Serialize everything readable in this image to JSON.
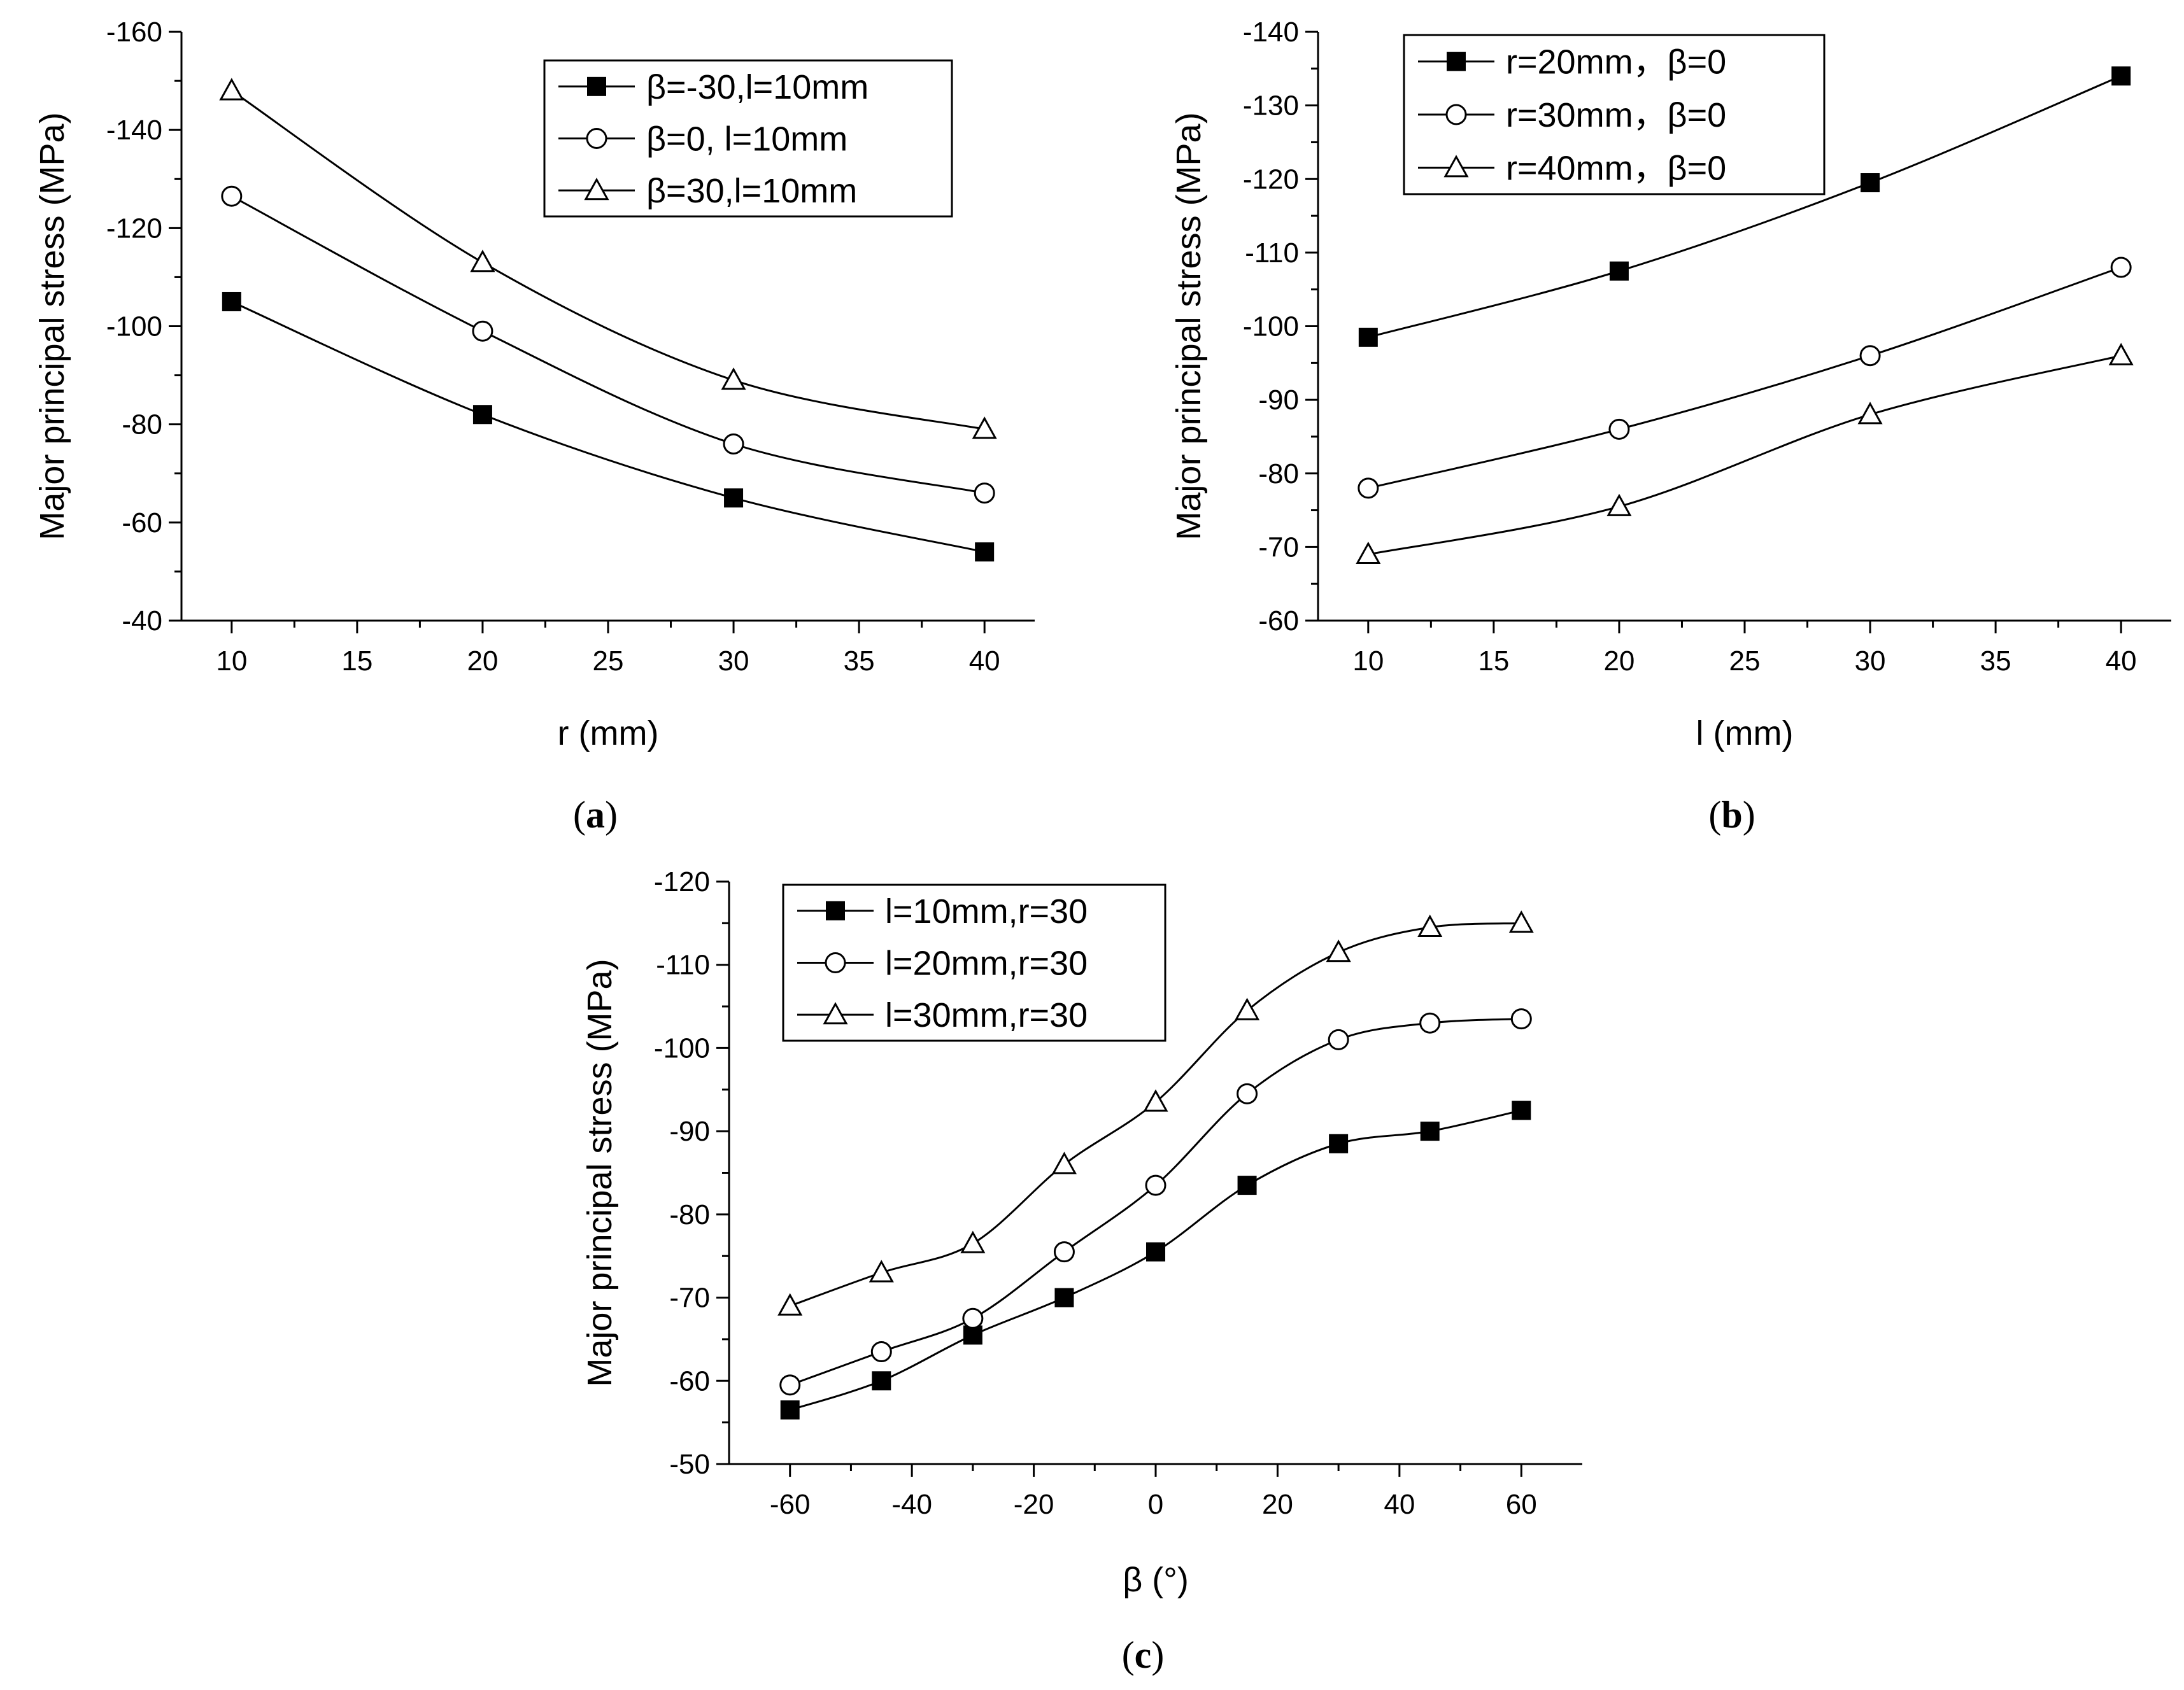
{
  "chart_data": [
    {
      "id": "a",
      "type": "line",
      "panel_label_prefix": "(",
      "panel_label": "a",
      "panel_label_suffix": ")",
      "xlabel": "r (mm)",
      "ylabel": "Major principal stress (MPa)",
      "xlim": [
        8,
        42
      ],
      "ylim": [
        -40,
        -160
      ],
      "xticks": [
        10,
        15,
        20,
        25,
        30,
        35,
        40
      ],
      "yticks": [
        -40,
        -60,
        -80,
        -100,
        -120,
        -140,
        -160
      ],
      "x": [
        10,
        20,
        30,
        40
      ],
      "legend_position": "top-right",
      "series": [
        {
          "name": "β=-30,l=10mm",
          "marker": "square-filled",
          "values": [
            -105,
            -82,
            -65,
            -54
          ]
        },
        {
          "name": "β=0, l=10mm",
          "marker": "circle-open",
          "values": [
            -126.5,
            -99,
            -76,
            -66
          ]
        },
        {
          "name": "β=30,l=10mm",
          "marker": "triangle-open",
          "values": [
            -148,
            -113,
            -89,
            -79
          ]
        }
      ]
    },
    {
      "id": "b",
      "type": "line",
      "panel_label_prefix": "(",
      "panel_label": "b",
      "panel_label_suffix": ")",
      "xlabel": "l (mm)",
      "ylabel": "Major principal stress (MPa)",
      "xlim": [
        8,
        42
      ],
      "ylim": [
        -60,
        -140
      ],
      "xticks": [
        10,
        15,
        20,
        25,
        30,
        35,
        40
      ],
      "yticks": [
        -60,
        -70,
        -80,
        -90,
        -100,
        -110,
        -120,
        -130,
        -140
      ],
      "x": [
        10,
        20,
        30,
        40
      ],
      "legend_position": "top-left",
      "series": [
        {
          "name": "r=20mm，β=0",
          "marker": "square-filled",
          "values": [
            -98.5,
            -107.5,
            -119.5,
            -134
          ]
        },
        {
          "name": "r=30mm，β=0",
          "marker": "circle-open",
          "values": [
            -78,
            -86,
            -96,
            -108
          ]
        },
        {
          "name": "r=40mm，β=0",
          "marker": "triangle-open",
          "values": [
            -69,
            -75.5,
            -88,
            -96
          ]
        }
      ]
    },
    {
      "id": "c",
      "type": "line",
      "panel_label_prefix": "(",
      "panel_label": "c",
      "panel_label_suffix": ")",
      "xlabel": "β (°)",
      "ylabel": "Major principal stress (MPa)",
      "xlim": [
        -70,
        70
      ],
      "ylim": [
        -50,
        -120
      ],
      "xticks": [
        -60,
        -40,
        -20,
        0,
        20,
        40,
        60
      ],
      "yticks": [
        -50,
        -60,
        -70,
        -80,
        -90,
        -100,
        -110,
        -120
      ],
      "x": [
        -60,
        -45,
        -30,
        -15,
        0,
        15,
        30,
        45,
        60
      ],
      "legend_position": "top-left",
      "series": [
        {
          "name": "l=10mm,r=30",
          "marker": "square-filled",
          "values": [
            -56.5,
            -60,
            -65.5,
            -70,
            -75.5,
            -83.5,
            -88.5,
            -90,
            -92.5
          ]
        },
        {
          "name": "l=20mm,r=30",
          "marker": "circle-open",
          "values": [
            -59.5,
            -63.5,
            -67.5,
            -75.5,
            -83.5,
            -94.5,
            -101,
            -103,
            -103.5
          ]
        },
        {
          "name": "l=30mm,r=30",
          "marker": "triangle-open",
          "values": [
            -69,
            -73,
            -76.5,
            -86,
            -93.5,
            -104.5,
            -111.5,
            -114.5,
            -115
          ]
        }
      ]
    }
  ]
}
